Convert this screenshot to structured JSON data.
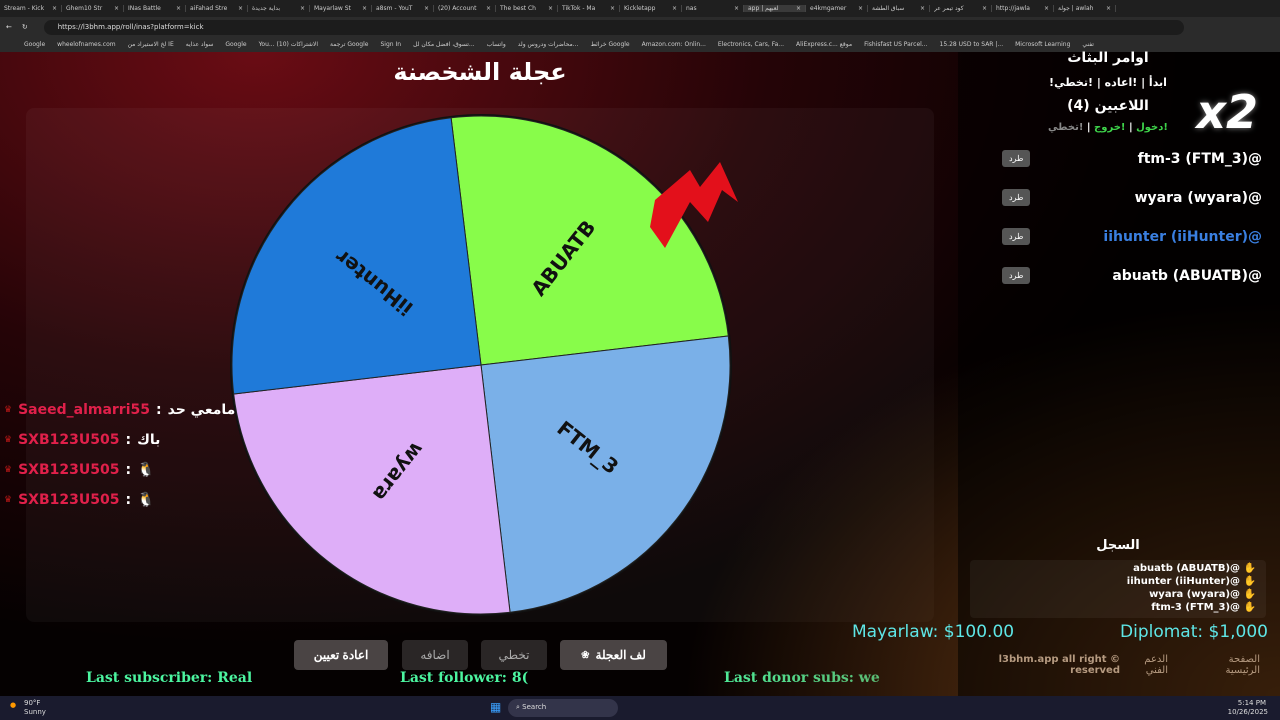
{
  "browser": {
    "tabs": [
      "Stream - Kick",
      "Ghem10 Str",
      "INas Battle",
      "aiFahad Stre",
      "بداية جديدة",
      "Mayarlaw St",
      "a8sm - YouT",
      "(20) Account",
      "The best Ch",
      "TikTok - Ma",
      "Kickletapp",
      "nas",
      "app | لعبهم",
      "e4kmgamer",
      "سباق الطشة",
      "كود تيمر عر",
      "http://jawla",
      "جولة | awlah"
    ],
    "active_tab": 12,
    "url": "https://l3bhm.app/roll/inas?platform=kick",
    "bookmarks": [
      "Google",
      "wheelofnames.com",
      "لخ الاستيراد من IE",
      "سواد عذايه",
      "Google",
      "You... الاشتراكات (10)",
      "ترجمة Google",
      "Sign In",
      "تسوق، افضل مكان لل...",
      "واتساب",
      "محاضرات ودروس ولد...",
      "خرائط Google",
      "Amazon.com: Onlin...",
      "Electronics, Cars, Fa...",
      "AliExpress.c... موقع",
      "Fishisfast US Parcel...",
      "15.28 USD to SAR |...",
      "Microsoft Learning",
      "تفني"
    ]
  },
  "title": "عجلة الشخصنة",
  "wheel": {
    "segments": [
      {
        "label": "ABUATB",
        "color": "#88fc4a",
        "start": -96.9,
        "end": -6.7
      },
      {
        "label": "FTM_3",
        "color": "#7ab0e8",
        "start": -6.7,
        "end": 83.3
      },
      {
        "label": "wyara",
        "color": "#deaef8",
        "start": 83.3,
        "end": 173.3
      },
      {
        "label": "iiHunter",
        "color": "#1f7ad9",
        "start": 173.3,
        "end": 263.1
      }
    ],
    "pointer_color": "#e3101b"
  },
  "chat": [
    {
      "user": "Saeed_almarri55",
      "msg": "مامعي حد"
    },
    {
      "user": "SXB123U505",
      "msg": "باك"
    },
    {
      "user": "SXB123U505",
      "msg": "🐧"
    },
    {
      "user": "SXB123U505",
      "msg": "🐧"
    }
  ],
  "buttons": {
    "spin": "لف العجلة",
    "skip": "تخطي",
    "add": "اضافه",
    "reset": "اعادة تعيين"
  },
  "ticker": {
    "subscriber": "Last subscriber: Real",
    "follower": "Last follower: 8(",
    "donor": "Last donor subs: we"
  },
  "overlay": {
    "mayarlaw": "Mayarlaw: $100.00",
    "diplomat": "Diplomat: $1,000",
    "x2": "x2"
  },
  "side": {
    "commands_title": "اوامر البثاث",
    "commands": "!ابدأ | !اعاده | !تخطي",
    "players_title": "اللاعبين (4)",
    "join": "!دخول",
    "leave": "!خروج",
    "skip": "!تخطي",
    "kick_label": "طرد",
    "players": [
      {
        "name": "ftm-3 (FTM_3)@",
        "color": "#ffffff"
      },
      {
        "name": "wyara (wyara)@",
        "color": "#ffffff"
      },
      {
        "name": "iihunter (iiHunter)@",
        "color": "#3a7fe0"
      },
      {
        "name": "abuatb (ABUATB)@",
        "color": "#ffffff"
      }
    ],
    "log_title": "السجل",
    "log": [
      "abuatb (ABUATB)@",
      "iihunter (iiHunter)@",
      "wyara (wyara)@",
      "ftm-3 (FTM_3)@"
    ],
    "footer": {
      "home": "الصفحة الرئيسية",
      "support": "الدعم الفني",
      "rights": "l3bhm.app all right © reserved"
    }
  },
  "taskbar": {
    "weather": "90°F",
    "weather_desc": "Sunny",
    "search": "Search",
    "time": "5:14 PM",
    "date": "10/26/2025"
  }
}
